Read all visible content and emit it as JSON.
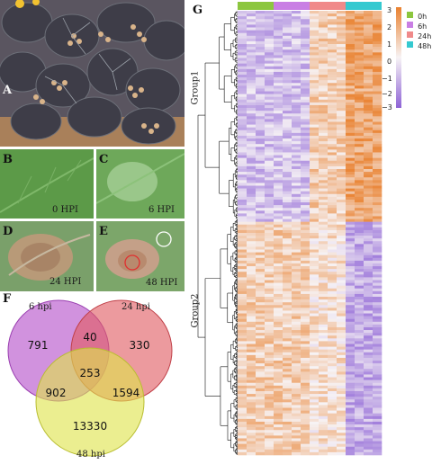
{
  "panels": {
    "A": {
      "label": "A"
    },
    "B": {
      "label": "B",
      "hpi": "0 HPI"
    },
    "C": {
      "label": "C",
      "hpi": "6 HPI"
    },
    "D": {
      "label": "D",
      "hpi": "24 HPI"
    },
    "E": {
      "label": "E",
      "hpi": "48 HPI"
    },
    "F": {
      "label": "F"
    },
    "G": {
      "label": "G"
    }
  },
  "venn": {
    "set_labels": [
      "6 hpi",
      "24 hpi",
      "48 hpi"
    ],
    "colors": [
      "#b44fc9",
      "#e05c63",
      "#dfe44c"
    ],
    "regions": {
      "only_6": "791",
      "only_24": "330",
      "only_48": "13330",
      "6_24": "40",
      "6_48": "902",
      "24_48": "1594",
      "all": "253"
    }
  },
  "heatmap": {
    "groups": [
      "Group1",
      "Group2"
    ],
    "conditions": [
      {
        "name": "0h",
        "color": "#8cc63f"
      },
      {
        "name": "6h",
        "color": "#c97fe4"
      },
      {
        "name": "24h",
        "color": "#f08a8a"
      },
      {
        "name": "48h",
        "color": "#35c9d0"
      }
    ],
    "scale_ticks": [
      "3",
      "2",
      "1",
      "0",
      "−1",
      "−2",
      "−3"
    ],
    "colors": {
      "high": "#e9812f",
      "mid": "#f7f3f5",
      "low": "#8e63d6"
    }
  },
  "chart_data": {
    "type": "heatmap",
    "title": "",
    "columns": [
      "0h",
      "6h",
      "24h",
      "48h"
    ],
    "row_groups": [
      "Group1",
      "Group2"
    ],
    "color_range": [
      -3,
      3
    ],
    "group_pattern": {
      "Group1": {
        "0h": -1,
        "6h": -1,
        "24h": 1,
        "48h": 2
      },
      "Group2": {
        "0h": 1,
        "6h": 1,
        "24h": 0.5,
        "48h": -1.5
      }
    }
  }
}
